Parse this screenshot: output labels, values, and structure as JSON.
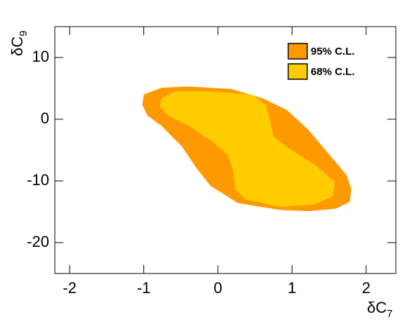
{
  "chart_data": {
    "type": "contour",
    "xlabel": "δC",
    "xlabel_sub": "7",
    "ylabel": "δC",
    "ylabel_sub": "9",
    "xlim": [
      -2.2,
      2.4
    ],
    "ylim": [
      -25,
      15
    ],
    "xticks": [
      -2,
      -1,
      0,
      1,
      2
    ],
    "yticks": [
      -20,
      -10,
      0,
      10
    ],
    "legend": "top-right",
    "series": [
      {
        "name": "95% C.L.",
        "color": "#ff9900",
        "x": [
          -1.0,
          -0.76,
          -0.39,
          0.18,
          0.6,
          0.93,
          1.22,
          1.5,
          1.74,
          1.8,
          1.78,
          1.59,
          1.22,
          0.84,
          0.27,
          -0.1,
          -0.29,
          -0.48,
          -0.76,
          -0.95,
          -1.02
        ],
        "y": [
          4.0,
          5.1,
          5.3,
          4.9,
          3.4,
          1.5,
          -1.7,
          -5.7,
          -9.1,
          -11.3,
          -13.4,
          -14.5,
          -14.9,
          -14.7,
          -13.6,
          -10.8,
          -7.9,
          -4.5,
          -1.1,
          0.6,
          2.3
        ]
      },
      {
        "name": "68% C.L.",
        "color": "#ffcc00",
        "x": [
          -0.76,
          -0.58,
          -0.1,
          0.46,
          0.65,
          0.7,
          0.75,
          0.93,
          1.31,
          1.58,
          1.55,
          1.31,
          0.84,
          0.37,
          0.23,
          0.21,
          0.13,
          -0.1,
          -0.39,
          -0.67,
          -0.78
        ],
        "y": [
          3.4,
          4.5,
          4.5,
          4.0,
          2.3,
          0,
          -2.8,
          -4.5,
          -7.4,
          -10.2,
          -12.5,
          -13.8,
          -14.2,
          -13.0,
          -11.3,
          -8.5,
          -5.7,
          -3.4,
          -1.1,
          0.6,
          2.0
        ]
      }
    ]
  }
}
